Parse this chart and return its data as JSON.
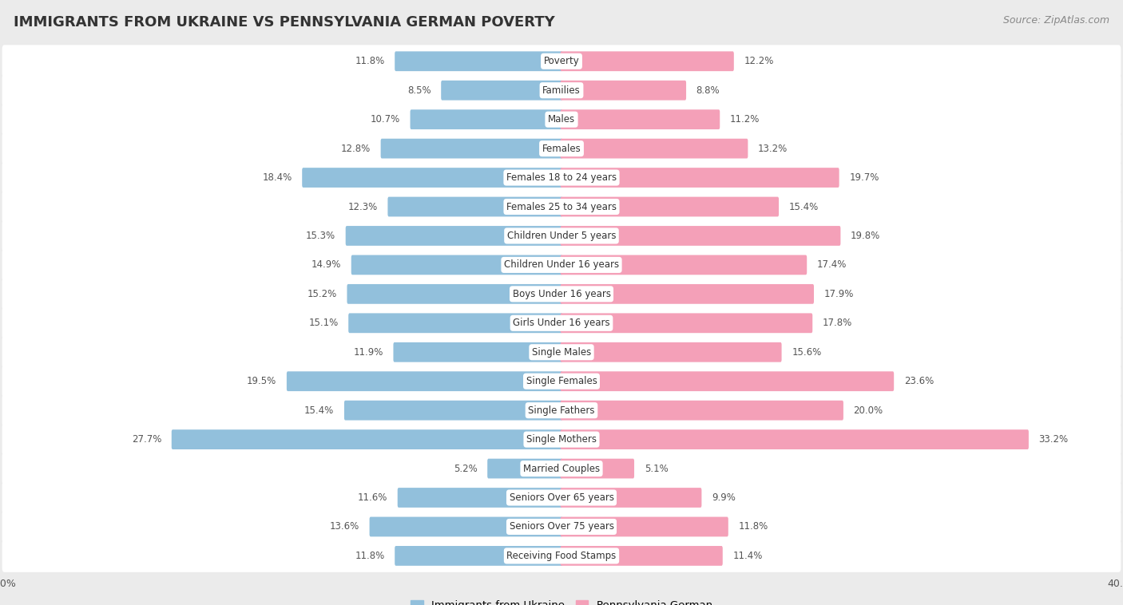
{
  "title": "IMMIGRANTS FROM UKRAINE VS PENNSYLVANIA GERMAN POVERTY",
  "source": "Source: ZipAtlas.com",
  "categories": [
    "Poverty",
    "Families",
    "Males",
    "Females",
    "Females 18 to 24 years",
    "Females 25 to 34 years",
    "Children Under 5 years",
    "Children Under 16 years",
    "Boys Under 16 years",
    "Girls Under 16 years",
    "Single Males",
    "Single Females",
    "Single Fathers",
    "Single Mothers",
    "Married Couples",
    "Seniors Over 65 years",
    "Seniors Over 75 years",
    "Receiving Food Stamps"
  ],
  "ukraine_values": [
    11.8,
    8.5,
    10.7,
    12.8,
    18.4,
    12.3,
    15.3,
    14.9,
    15.2,
    15.1,
    11.9,
    19.5,
    15.4,
    27.7,
    5.2,
    11.6,
    13.6,
    11.8
  ],
  "pagerman_values": [
    12.2,
    8.8,
    11.2,
    13.2,
    19.7,
    15.4,
    19.8,
    17.4,
    17.9,
    17.8,
    15.6,
    23.6,
    20.0,
    33.2,
    5.1,
    9.9,
    11.8,
    11.4
  ],
  "ukraine_color": "#92C0DC",
  "pagerman_color": "#F4A0B8",
  "background_color": "#EBEBEB",
  "row_bg_color": "#FFFFFF",
  "label_bg_color": "#FFFFFF",
  "xlim": 40.0,
  "legend_ukraine": "Immigrants from Ukraine",
  "legend_pagerman": "Pennsylvania German",
  "title_fontsize": 13,
  "source_fontsize": 9,
  "bar_height": 0.52,
  "label_fontsize": 8.5,
  "category_fontsize": 8.5,
  "value_color": "#555555"
}
